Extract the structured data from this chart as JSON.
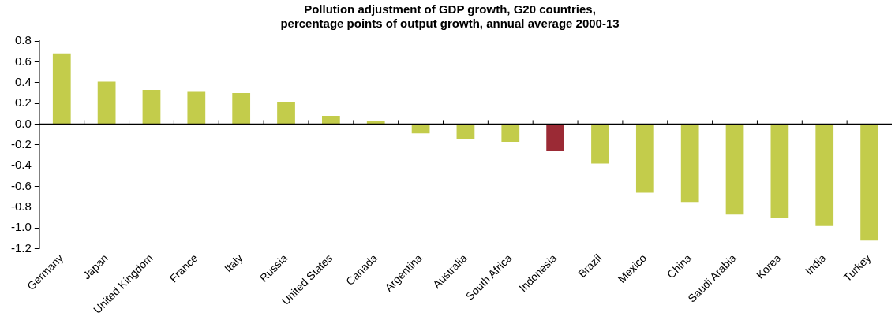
{
  "chart_data": {
    "type": "bar",
    "title": "Pollution adjustment of GDP growth, G20 countries,\npercentage points of output growth, annual average 2000-13",
    "categories": [
      "Germany",
      "Japan",
      "United Kingdom",
      "France",
      "Italy",
      "Russia",
      "United States",
      "Canada",
      "Argentina",
      "Australia",
      "South Africa",
      "Indonesia",
      "Brazil",
      "Mexico",
      "China",
      "Saudi Arabia",
      "Korea",
      "India",
      "Turkey"
    ],
    "values": [
      0.68,
      0.41,
      0.33,
      0.31,
      0.3,
      0.21,
      0.08,
      0.03,
      -0.09,
      -0.14,
      -0.17,
      -0.26,
      -0.38,
      -0.66,
      -0.75,
      -0.87,
      -0.9,
      -0.98,
      -1.12
    ],
    "colors": [
      "#c3cc4b",
      "#c3cc4b",
      "#c3cc4b",
      "#c3cc4b",
      "#c3cc4b",
      "#c3cc4b",
      "#c3cc4b",
      "#c3cc4b",
      "#c3cc4b",
      "#c3cc4b",
      "#c3cc4b",
      "#9b2a35",
      "#c3cc4b",
      "#c3cc4b",
      "#c3cc4b",
      "#c3cc4b",
      "#c3cc4b",
      "#c3cc4b",
      "#c3cc4b"
    ],
    "ylim": [
      -1.2,
      0.8
    ],
    "yticks": [
      {
        "value": 0.8,
        "label": "0.8"
      },
      {
        "value": 0.6,
        "label": "0.6"
      },
      {
        "value": 0.4,
        "label": "0.4"
      },
      {
        "value": 0.2,
        "label": "0.2"
      },
      {
        "value": 0,
        "label": "0.0"
      },
      {
        "value": -0.2,
        "label": "-0.2"
      },
      {
        "value": -0.4,
        "label": "-0.4"
      },
      {
        "value": -0.6,
        "label": "-0.6"
      },
      {
        "value": -0.8,
        "label": "-0.8"
      },
      {
        "value": -1.0,
        "label": "-1.0"
      },
      {
        "value": -1.2,
        "label": "-1.2"
      }
    ],
    "legend": false
  }
}
